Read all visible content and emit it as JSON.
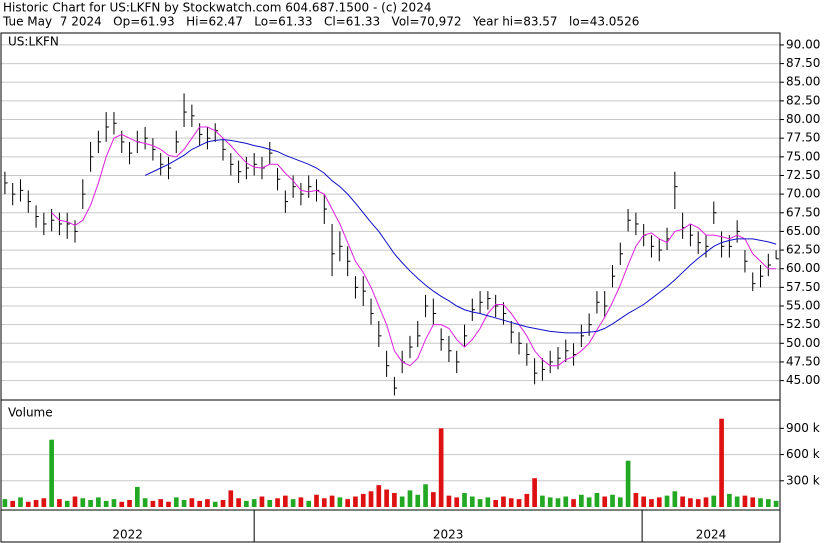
{
  "chart_data": {
    "type": "stock",
    "title": "Historic Chart for US:LKFN by Stockwatch.com 604.687.1500 - (c) 2024",
    "subtitle": "Tue May  7 2024   Op=61.93   Hi=62.47   Lo=61.33   Cl=61.33   Vol=70,972   Year hi=83.57   lo=43.0526",
    "symbol": "US:LKFN",
    "bar_color": "#000000",
    "grid": true,
    "ylim": [
      42.4,
      91.6
    ],
    "yticks": [
      {
        "value": 45,
        "label": "45.00"
      },
      {
        "value": 47.5,
        "label": "47.50"
      },
      {
        "value": 50,
        "label": "50.00"
      },
      {
        "value": 52.5,
        "label": "52.50"
      },
      {
        "value": 55,
        "label": "55.00"
      },
      {
        "value": 57.5,
        "label": "57.50"
      },
      {
        "value": 60,
        "label": "60.00"
      },
      {
        "value": 62.5,
        "label": "62.50"
      },
      {
        "value": 65,
        "label": "65.00"
      },
      {
        "value": 67.5,
        "label": "67.50"
      },
      {
        "value": 70,
        "label": "70.00"
      },
      {
        "value": 72.5,
        "label": "72.50"
      },
      {
        "value": 75,
        "label": "75.00"
      },
      {
        "value": 77.5,
        "label": "77.50"
      },
      {
        "value": 80,
        "label": "80.00"
      },
      {
        "value": 82.5,
        "label": "82.50"
      },
      {
        "value": 85,
        "label": "85.00"
      },
      {
        "value": 87.5,
        "label": "87.50"
      },
      {
        "value": 90,
        "label": "90.00"
      }
    ],
    "xlim": [
      0,
      100
    ],
    "xticks": [
      {
        "value": 0,
        "label": "2022"
      },
      {
        "value": 32.5,
        "label": "2023"
      },
      {
        "value": 82.3,
        "label": "2024"
      }
    ],
    "close": [
      71.5,
      70,
      70.5,
      69,
      67,
      66,
      66.5,
      66,
      66,
      65,
      70,
      75,
      77,
      79,
      79.5,
      77,
      75.5,
      77,
      77.5,
      76,
      74,
      73.5,
      77,
      81,
      80.5,
      78,
      77.5,
      78.5,
      76,
      74,
      73,
      73.5,
      74,
      73.5,
      75.5,
      72,
      69,
      71,
      70,
      71,
      70.5,
      68,
      62,
      63,
      61,
      57.5,
      57,
      54,
      51,
      47,
      44,
      47.5,
      49.5,
      51,
      55,
      54,
      50.5,
      49,
      47.5,
      51,
      54.5,
      55.5,
      56,
      55,
      54,
      51.5,
      50,
      48.5,
      46,
      46.5,
      47.5,
      48,
      49,
      48.5,
      51,
      52.5,
      55.5,
      55,
      59,
      62,
      66.5,
      66,
      64.5,
      63,
      62.5,
      64,
      71,
      65.5,
      64.5,
      63.5,
      63,
      67.5,
      63,
      63,
      65,
      61,
      58,
      59,
      60.5,
      61.33
    ],
    "high": [
      73,
      71.5,
      72,
      70.5,
      68.5,
      67.5,
      68,
      67.5,
      67.5,
      66.5,
      72,
      77,
      78.5,
      81,
      81,
      78.5,
      77,
      78.5,
      79,
      77.5,
      75.5,
      75,
      78.5,
      83.5,
      82,
      79.5,
      79,
      79.5,
      77.5,
      75.5,
      74.5,
      75,
      75.5,
      75,
      77,
      73.5,
      70.5,
      72.5,
      71.5,
      72.5,
      72,
      70,
      66,
      65,
      63,
      59,
      59,
      56,
      53,
      49,
      45.5,
      49,
      51,
      53,
      56.5,
      56,
      52,
      51,
      49,
      52.5,
      56,
      57,
      57,
      56.5,
      55.5,
      53,
      51.5,
      50,
      48,
      48,
      49,
      49.5,
      50.5,
      50,
      52.5,
      54,
      57,
      57,
      60.5,
      63.5,
      68,
      67.5,
      66,
      64.5,
      64,
      65.5,
      73,
      67.5,
      66,
      65,
      64.5,
      69,
      65,
      64.5,
      66.5,
      62.5,
      59.5,
      60.5,
      62,
      62.47
    ],
    "low": [
      70,
      68.5,
      69,
      67.5,
      65.5,
      64.5,
      65,
      64.5,
      64,
      63.5,
      68,
      73,
      75.5,
      77,
      78,
      75.5,
      74,
      75.5,
      76,
      74.5,
      72.5,
      72,
      75.5,
      79,
      79,
      76.5,
      76,
      77,
      74.5,
      72.5,
      71.5,
      72,
      72.5,
      72,
      74,
      70.5,
      67.5,
      69.5,
      68.5,
      69.5,
      69,
      66,
      59,
      61,
      59,
      56,
      55,
      52.5,
      49.5,
      45.5,
      43,
      46,
      48,
      49.5,
      53.5,
      52.5,
      49,
      47.5,
      46,
      49.5,
      53,
      54,
      54.5,
      53.5,
      52.5,
      50,
      48.5,
      47,
      44.5,
      45,
      46,
      46.5,
      47.5,
      47,
      49.5,
      51,
      54,
      53.5,
      57.5,
      60.5,
      65,
      64.5,
      63,
      61.5,
      61,
      62.5,
      68,
      64,
      63,
      62,
      61.5,
      66,
      61.5,
      61.5,
      63.5,
      59.5,
      57,
      57.5,
      59,
      61.33
    ],
    "moving_averages": [
      {
        "color": "#e020e0",
        "values": [
          null,
          null,
          null,
          null,
          null,
          null,
          67.5,
          66.5,
          66.3,
          65.8,
          66.5,
          68.5,
          71.5,
          75,
          77.5,
          78,
          77.5,
          77,
          76.8,
          76.5,
          76,
          75.2,
          75,
          76,
          77.5,
          79,
          79,
          78.5,
          77.5,
          76.5,
          75.3,
          74.2,
          73.6,
          73.5,
          74,
          74,
          72.8,
          71.8,
          70.5,
          70.3,
          70.5,
          70,
          68,
          66,
          63.5,
          61,
          59.5,
          57.5,
          55,
          52.5,
          49,
          47.5,
          47,
          48,
          50.5,
          52.5,
          52.5,
          52,
          50.5,
          49.5,
          50.5,
          52,
          54,
          55.2,
          55.2,
          54,
          52.5,
          51,
          49,
          47.8,
          47,
          47,
          47.8,
          48.2,
          49,
          50,
          51.8,
          53.5,
          55.5,
          57.8,
          60.5,
          63,
          64.5,
          64.8,
          64,
          63.5,
          65,
          65.3,
          66,
          65.5,
          64.5,
          64.5,
          64.3,
          64,
          64.5,
          64,
          62,
          61,
          60,
          60
        ]
      },
      {
        "color": "#1010c8",
        "values": [
          null,
          null,
          null,
          null,
          null,
          null,
          null,
          null,
          null,
          null,
          null,
          null,
          null,
          null,
          null,
          null,
          null,
          null,
          72.5,
          73,
          73.5,
          74,
          74.6,
          75.2,
          76,
          76.5,
          77,
          77.2,
          77.3,
          77.2,
          77,
          76.8,
          76.5,
          76.3,
          76,
          75.7,
          75.2,
          74.8,
          74.4,
          74,
          73.5,
          72.8,
          71.8,
          71,
          70,
          68.8,
          67.5,
          66.2,
          65,
          63.5,
          62,
          60.8,
          59.7,
          58.7,
          57.8,
          57,
          56.3,
          55.7,
          55,
          54.5,
          54.2,
          54,
          53.7,
          53.4,
          53.1,
          52.8,
          52.5,
          52.2,
          52,
          51.8,
          51.6,
          51.5,
          51.4,
          51.4,
          51.4,
          51.5,
          51.6,
          52,
          52.6,
          53.3,
          54,
          54.6,
          55.2,
          56,
          56.8,
          57.6,
          58.5,
          59.5,
          60.5,
          61.4,
          62.2,
          63,
          63.5,
          63.8,
          64,
          64,
          64,
          63.8,
          63.6,
          63.3
        ]
      }
    ],
    "volume": {
      "label": "Volume",
      "up_color": "#22a822",
      "down_color": "#dd1111",
      "ylim": [
        0,
        1190000
      ],
      "yticks": [
        {
          "value": 300000,
          "label": "300 k"
        },
        {
          "value": 600000,
          "label": "600 k"
        },
        {
          "value": 900000,
          "label": "900 k"
        }
      ],
      "values": [
        90000,
        70000,
        110000,
        60000,
        80000,
        100000,
        770000,
        90000,
        70000,
        120000,
        100000,
        80000,
        110000,
        70000,
        90000,
        60000,
        80000,
        230000,
        100000,
        70000,
        90000,
        60000,
        110000,
        80000,
        100000,
        70000,
        90000,
        60000,
        80000,
        190000,
        100000,
        70000,
        90000,
        120000,
        80000,
        100000,
        130000,
        90000,
        110000,
        70000,
        140000,
        100000,
        130000,
        110000,
        90000,
        120000,
        150000,
        180000,
        250000,
        200000,
        160000,
        120000,
        190000,
        140000,
        260000,
        170000,
        900000,
        130000,
        110000,
        160000,
        120000,
        90000,
        110000,
        80000,
        120000,
        100000,
        90000,
        150000,
        330000,
        130000,
        110000,
        100000,
        120000,
        90000,
        140000,
        110000,
        160000,
        120000,
        140000,
        110000,
        530000,
        160000,
        120000,
        90000,
        110000,
        130000,
        180000,
        120000,
        100000,
        90000,
        110000,
        130000,
        1010000,
        150000,
        120000,
        130000,
        110000,
        100000,
        90000,
        70972
      ]
    }
  }
}
